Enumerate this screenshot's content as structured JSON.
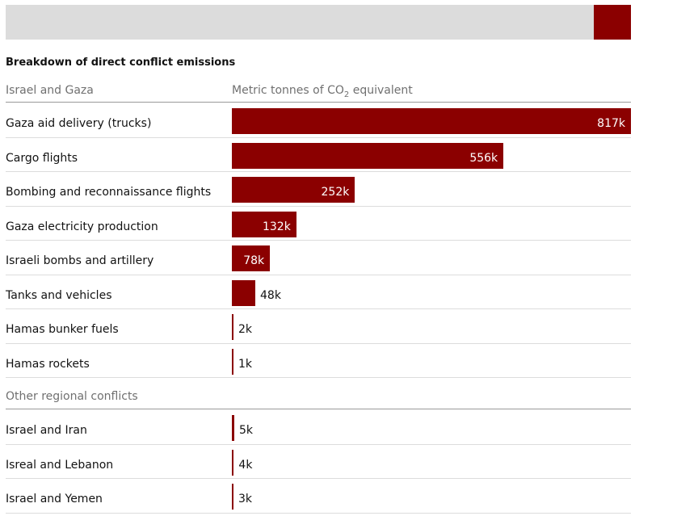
{
  "colors": {
    "bar": "#8b0000",
    "banner": "#dcdcdc",
    "accent": "#8b0000"
  },
  "title": "Breakdown of direct conflict emissions",
  "unit_label_before": "Metric tonnes of CO",
  "unit_label_sub": "2",
  "unit_label_after": " equivalent",
  "chart_data": {
    "type": "bar",
    "orientation": "horizontal",
    "title": "Breakdown of direct conflict emissions",
    "xlabel": "Metric tonnes of CO2 equivalent",
    "xlim": [
      0,
      817000
    ],
    "grid": false,
    "groups": [
      {
        "name": "Israel and Gaza",
        "categories": [
          "Gaza aid delivery (trucks)",
          "Cargo flights",
          "Bombing and reconnaissance flights",
          "Gaza electricity production",
          "Israeli bombs and artillery",
          "Tanks and vehicles",
          "Hamas bunker fuels",
          "Hamas rockets"
        ],
        "values": [
          817000,
          556000,
          252000,
          132000,
          78000,
          48000,
          2000,
          1000
        ],
        "labels": [
          "817k",
          "556k",
          "252k",
          "132k",
          "78k",
          "48k",
          "2k",
          "1k"
        ]
      },
      {
        "name": "Other regional conflicts",
        "categories": [
          "Israel and Iran",
          "Isreal and Lebanon",
          "Israel and Yemen"
        ],
        "values": [
          5000,
          4000,
          3000
        ],
        "labels": [
          "5k",
          "4k",
          "3k"
        ]
      }
    ]
  }
}
